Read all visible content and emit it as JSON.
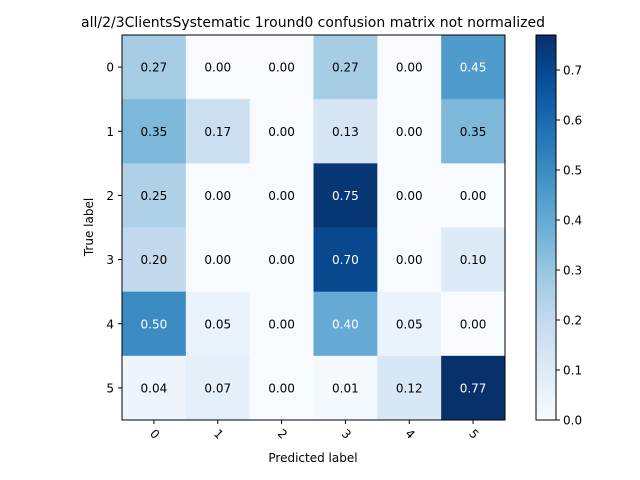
{
  "chart_data": {
    "type": "heatmap",
    "title": "all/2/3ClientsSystematic 1round0 confusion matrix not normalized",
    "xlabel": "Predicted label",
    "ylabel": "True label",
    "x_categories": [
      "0",
      "1",
      "2",
      "3",
      "4",
      "5"
    ],
    "y_categories": [
      "0",
      "1",
      "2",
      "3",
      "4",
      "5"
    ],
    "values": [
      [
        0.27,
        0.0,
        0.0,
        0.27,
        0.0,
        0.45
      ],
      [
        0.35,
        0.17,
        0.0,
        0.13,
        0.0,
        0.35
      ],
      [
        0.25,
        0.0,
        0.0,
        0.75,
        0.0,
        0.0
      ],
      [
        0.2,
        0.0,
        0.0,
        0.7,
        0.0,
        0.1
      ],
      [
        0.5,
        0.05,
        0.0,
        0.4,
        0.05,
        0.0
      ],
      [
        0.04,
        0.07,
        0.0,
        0.01,
        0.12,
        0.77
      ]
    ],
    "cell_labels": [
      [
        "0.27",
        "0.00",
        "0.00",
        "0.27",
        "0.00",
        "0.45"
      ],
      [
        "0.35",
        "0.17",
        "0.00",
        "0.13",
        "0.00",
        "0.35"
      ],
      [
        "0.25",
        "0.00",
        "0.00",
        "0.75",
        "0.00",
        "0.00"
      ],
      [
        "0.20",
        "0.00",
        "0.00",
        "0.70",
        "0.00",
        "0.10"
      ],
      [
        "0.50",
        "0.05",
        "0.00",
        "0.40",
        "0.05",
        "0.00"
      ],
      [
        "0.04",
        "0.07",
        "0.00",
        "0.01",
        "0.12",
        "0.77"
      ]
    ],
    "colormap": "Blues",
    "colorbar_range": [
      0,
      0.77
    ],
    "colorbar_ticks": [
      0.0,
      0.1,
      0.2,
      0.3,
      0.4,
      0.5,
      0.6,
      0.7
    ],
    "colorbar_tick_labels": [
      "0.0",
      "0.1",
      "0.2",
      "0.3",
      "0.4",
      "0.5",
      "0.6",
      "0.7"
    ],
    "colorbar_placement": "right",
    "x_tick_rotation": 45,
    "text_color_light": "#ffffff",
    "text_color_dark": "#000000"
  }
}
